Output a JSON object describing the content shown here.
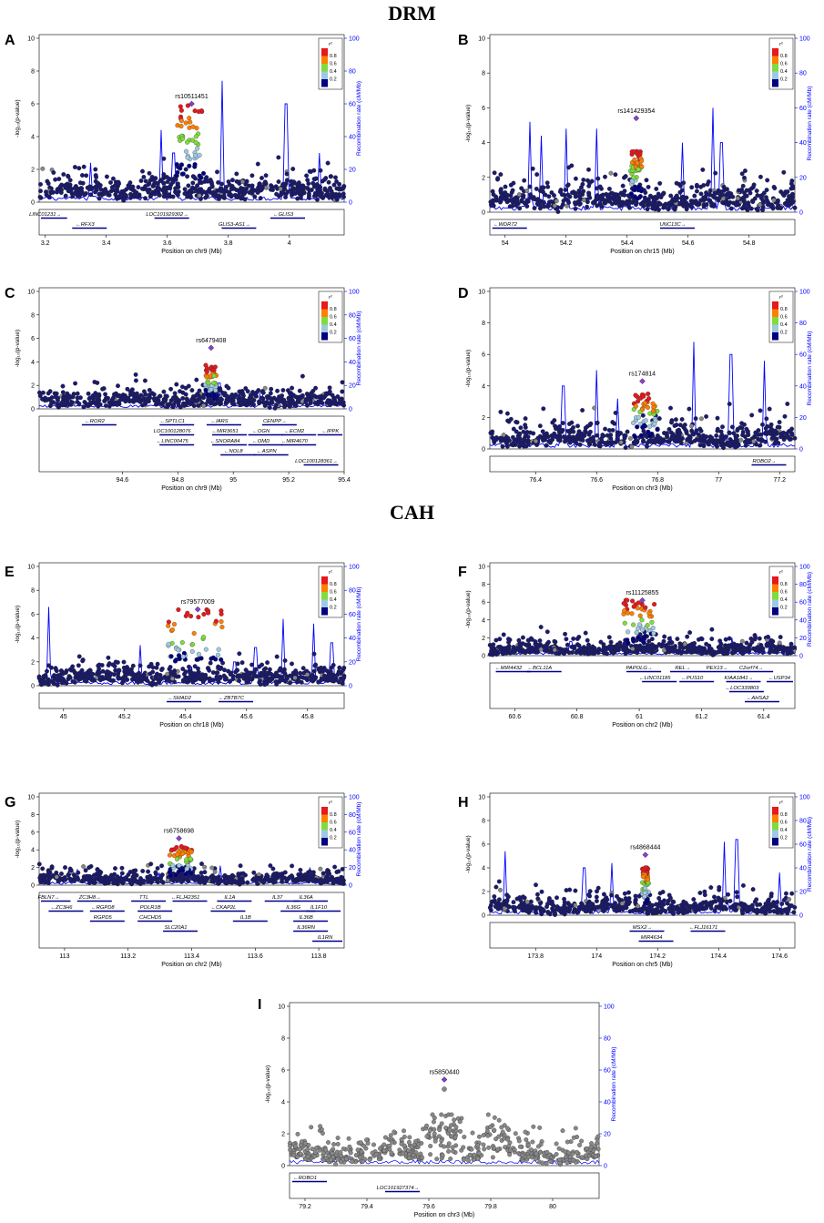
{
  "sections": [
    {
      "title": "DRM",
      "panel_ids": [
        "A",
        "B",
        "C",
        "D"
      ]
    },
    {
      "title": "CAH",
      "panel_ids": [
        "E",
        "F",
        "G",
        "H",
        "I"
      ]
    }
  ],
  "common": {
    "ylabel": "-log₁₀(p-value)",
    "ylabel2": "Recombination rate (cM/Mb)",
    "legend_title": "r²",
    "legend_labels": [
      "0.8",
      "0.6",
      "0.4",
      "0.2"
    ],
    "legend_colors": [
      "#e41a1c",
      "#ff7f00",
      "#7fdc3c",
      "#9ecae1",
      "#000080"
    ],
    "y_ticks": [
      "0",
      "2",
      "4",
      "6",
      "8",
      "10"
    ],
    "y2_ticks": [
      "0",
      "20",
      "40",
      "60",
      "80",
      "100"
    ],
    "point_color": "#1a1a6e",
    "gray_color": "#888888",
    "recomb_color": "#0000ff"
  },
  "chart_data": [
    {
      "id": "A",
      "type": "scatter",
      "title": "",
      "xlabel": "Position on chr9 (Mb)",
      "xlim": [
        3.18,
        4.18
      ],
      "ylim": [
        0,
        10
      ],
      "x_ticks": [
        3.2,
        3.4,
        3.6,
        3.8,
        4.0
      ],
      "x_tick_labels": [
        "3.2",
        "3.4",
        "3.6",
        "3.8",
        "4"
      ],
      "lead_snp": "rs10511451",
      "lead_x": 3.68,
      "lead_y": 6.0,
      "cluster": {
        "x": [
          3.63,
          3.72
        ],
        "max_y": 6.0
      },
      "recomb_peaks": [
        [
          3.35,
          24
        ],
        [
          3.58,
          44
        ],
        [
          3.62,
          30
        ],
        [
          3.78,
          74
        ],
        [
          3.99,
          60
        ],
        [
          4.1,
          30
        ]
      ],
      "genes": [
        {
          "name": "LINC01231",
          "x": 3.2,
          "row": 0,
          "dir": "→"
        },
        {
          "name": "RFX3",
          "x": 3.33,
          "row": 1,
          "dir": "←"
        },
        {
          "name": "LOC101929302",
          "x": 3.6,
          "row": 0,
          "dir": "→"
        },
        {
          "name": "GLIS3",
          "x": 3.98,
          "row": 0,
          "dir": "←"
        },
        {
          "name": "GLIS3-AS1",
          "x": 3.82,
          "row": 1,
          "dir": "→"
        }
      ]
    },
    {
      "id": "B",
      "type": "scatter",
      "title": "",
      "xlabel": "Position on chr15 (Mb)",
      "xlim": [
        53.95,
        54.95
      ],
      "ylim": [
        0,
        10
      ],
      "x_ticks": [
        54.0,
        54.2,
        54.4,
        54.6,
        54.8
      ],
      "x_tick_labels": [
        "54",
        "54.2",
        "54.4",
        "54.6",
        "54.8"
      ],
      "lead_snp": "rs141429354",
      "lead_x": 54.43,
      "lead_y": 5.4,
      "cluster": {
        "x": [
          54.41,
          54.45
        ],
        "max_y": 3.6
      },
      "recomb_peaks": [
        [
          54.08,
          52
        ],
        [
          54.12,
          44
        ],
        [
          54.2,
          48
        ],
        [
          54.3,
          48
        ],
        [
          54.58,
          40
        ],
        [
          54.68,
          60
        ],
        [
          54.71,
          40
        ]
      ],
      "genes": [
        {
          "name": "WDR72",
          "x": 54.0,
          "row": 0,
          "dir": "←"
        },
        {
          "name": "UNC13C",
          "x": 54.55,
          "row": 0,
          "dir": "→"
        }
      ]
    },
    {
      "id": "C",
      "type": "scatter",
      "title": "",
      "xlabel": "Position on chr9 (Mb)",
      "xlim": [
        94.3,
        95.4
      ],
      "ylim": [
        0,
        10
      ],
      "x_ticks": [
        94.6,
        94.8,
        95.0,
        95.2,
        95.4
      ],
      "x_tick_labels": [
        "94.6",
        "94.8",
        "95",
        "95.2",
        "95.4"
      ],
      "lead_snp": "rs6479408",
      "lead_x": 94.92,
      "lead_y": 5.2,
      "cluster": {
        "x": [
          94.9,
          94.94
        ],
        "max_y": 3.8
      },
      "recomb_peaks": [
        [
          94.95,
          22
        ],
        [
          95.1,
          14
        ]
      ],
      "genes": [
        {
          "name": "ROR2",
          "x": 94.5,
          "row": 0,
          "dir": "←"
        },
        {
          "name": "SPTLC1",
          "x": 94.78,
          "row": 0,
          "dir": "←"
        },
        {
          "name": "IARS",
          "x": 94.95,
          "row": 0,
          "dir": "←"
        },
        {
          "name": "CENPP",
          "x": 95.15,
          "row": 0,
          "dir": "→"
        },
        {
          "name": "LOC100128076",
          "x": 94.78,
          "row": 1,
          "dir": ""
        },
        {
          "name": "MIR3651",
          "x": 94.97,
          "row": 1,
          "dir": "←"
        },
        {
          "name": "OGN",
          "x": 95.1,
          "row": 1,
          "dir": "←"
        },
        {
          "name": "ECM2",
          "x": 95.22,
          "row": 1,
          "dir": "←"
        },
        {
          "name": "IPPK",
          "x": 95.35,
          "row": 1,
          "dir": "←"
        },
        {
          "name": "LINC00475",
          "x": 94.78,
          "row": 2,
          "dir": "←"
        },
        {
          "name": "SNORA84",
          "x": 94.97,
          "row": 2,
          "dir": "←"
        },
        {
          "name": "OMD",
          "x": 95.1,
          "row": 2,
          "dir": "←"
        },
        {
          "name": "MIR4670",
          "x": 95.22,
          "row": 2,
          "dir": "←"
        },
        {
          "name": "NOL8",
          "x": 95.0,
          "row": 3,
          "dir": "←"
        },
        {
          "name": "ASPN",
          "x": 95.12,
          "row": 3,
          "dir": "←"
        },
        {
          "name": "LOC100128361",
          "x": 95.3,
          "row": 4,
          "dir": "→"
        }
      ]
    },
    {
      "id": "D",
      "type": "scatter",
      "title": "",
      "xlabel": "Position on chr3 (Mb)",
      "xlim": [
        76.25,
        77.25
      ],
      "ylim": [
        0,
        10
      ],
      "x_ticks": [
        76.4,
        76.6,
        76.8,
        77.0,
        77.2
      ],
      "x_tick_labels": [
        "76.4",
        "76.6",
        "76.8",
        "77",
        "77.2"
      ],
      "lead_snp": "rs174814",
      "lead_x": 76.75,
      "lead_y": 4.3,
      "cluster": {
        "x": [
          76.72,
          76.8
        ],
        "max_y": 3.5
      },
      "recomb_peaks": [
        [
          76.49,
          40
        ],
        [
          76.6,
          50
        ],
        [
          76.67,
          32
        ],
        [
          76.92,
          68
        ],
        [
          77.04,
          60
        ],
        [
          77.15,
          56
        ]
      ],
      "genes": [
        {
          "name": "ROBO2",
          "x": 77.15,
          "row": 0,
          "dir": "→"
        }
      ]
    },
    {
      "id": "E",
      "type": "scatter",
      "title": "",
      "xlabel": "Position on chr18 (Mb)",
      "xlim": [
        44.92,
        45.92
      ],
      "ylim": [
        0,
        10
      ],
      "x_ticks": [
        45.0,
        45.2,
        45.4,
        45.6,
        45.8
      ],
      "x_tick_labels": [
        "45",
        "45.2",
        "45.4",
        "45.6",
        "45.8"
      ],
      "lead_snp": "rs79577009",
      "lead_x": 45.44,
      "lead_y": 6.4,
      "cluster": {
        "x": [
          45.34,
          45.52
        ],
        "max_y": 6.4
      },
      "recomb_peaks": [
        [
          44.95,
          66
        ],
        [
          45.25,
          34
        ],
        [
          45.42,
          16
        ],
        [
          45.56,
          20
        ],
        [
          45.63,
          32
        ],
        [
          45.72,
          56
        ],
        [
          45.82,
          52
        ],
        [
          45.88,
          36
        ]
      ],
      "genes": [
        {
          "name": "SMAD2",
          "x": 45.38,
          "row": 0,
          "dir": "←"
        },
        {
          "name": "ZBTB7C",
          "x": 45.55,
          "row": 0,
          "dir": "←"
        }
      ]
    },
    {
      "id": "F",
      "type": "scatter",
      "title": "",
      "xlabel": "Position on chr2 (Mb)",
      "xlim": [
        60.52,
        61.5
      ],
      "ylim": [
        0,
        10
      ],
      "x_ticks": [
        60.6,
        60.8,
        61.0,
        61.2,
        61.4
      ],
      "x_tick_labels": [
        "60.6",
        "60.8",
        "61",
        "61.2",
        "61.4"
      ],
      "lead_snp": "rs11125855",
      "lead_x": 61.01,
      "lead_y": 6.2,
      "cluster": {
        "x": [
          60.95,
          61.05
        ],
        "max_y": 6.2
      },
      "recomb_peaks": [
        [
          60.78,
          16
        ],
        [
          61.1,
          22
        ],
        [
          61.3,
          20
        ],
        [
          61.42,
          20
        ]
      ],
      "genes": [
        {
          "name": "MIR4432",
          "x": 60.58,
          "row": 0,
          "dir": "←"
        },
        {
          "name": "BCL11A",
          "x": 60.68,
          "row": 0,
          "dir": "←"
        },
        {
          "name": "PAPOLG",
          "x": 61.0,
          "row": 0,
          "dir": "→"
        },
        {
          "name": "REL",
          "x": 61.14,
          "row": 0,
          "dir": "→"
        },
        {
          "name": "PEX13",
          "x": 61.25,
          "row": 0,
          "dir": "→"
        },
        {
          "name": "C2orf74",
          "x": 61.36,
          "row": 0,
          "dir": "→"
        },
        {
          "name": "LINC01185",
          "x": 61.05,
          "row": 1,
          "dir": "←"
        },
        {
          "name": "PUS10",
          "x": 61.17,
          "row": 1,
          "dir": "←"
        },
        {
          "name": "KIAA1841",
          "x": 61.32,
          "row": 1,
          "dir": "→"
        },
        {
          "name": "USP34",
          "x": 61.45,
          "row": 1,
          "dir": "←"
        },
        {
          "name": "LOC339803",
          "x": 61.33,
          "row": 2,
          "dir": "←"
        },
        {
          "name": "AHSA2",
          "x": 61.38,
          "row": 3,
          "dir": "←"
        }
      ]
    },
    {
      "id": "G",
      "type": "scatter",
      "title": "",
      "xlabel": "Position on chr2 (Mb)",
      "xlim": [
        112.92,
        113.88
      ],
      "ylim": [
        0,
        10
      ],
      "x_ticks": [
        113.0,
        113.2,
        113.4,
        113.6,
        113.8
      ],
      "x_tick_labels": [
        "113",
        "113.2",
        "113.4",
        "113.6",
        "113.8"
      ],
      "lead_snp": "rs6758698",
      "lead_x": 113.36,
      "lead_y": 5.3,
      "cluster": {
        "x": [
          113.33,
          113.4
        ],
        "max_y": 4.5
      },
      "recomb_peaks": [
        [
          113.04,
          18
        ],
        [
          113.18,
          12
        ],
        [
          113.3,
          14
        ],
        [
          113.49,
          22
        ],
        [
          113.77,
          20
        ]
      ],
      "genes": [
        {
          "name": "FBLN7",
          "x": 112.95,
          "row": 0,
          "dir": "→"
        },
        {
          "name": "ZC3H8",
          "x": 113.08,
          "row": 0,
          "dir": "→"
        },
        {
          "name": "TTL",
          "x": 113.25,
          "row": 0,
          "dir": ""
        },
        {
          "name": "FLJ42351",
          "x": 113.38,
          "row": 0,
          "dir": "←"
        },
        {
          "name": "IL1A",
          "x": 113.52,
          "row": 0,
          "dir": ""
        },
        {
          "name": "IL37",
          "x": 113.67,
          "row": 0,
          "dir": ""
        },
        {
          "name": "IL36A",
          "x": 113.76,
          "row": 0,
          "dir": ""
        },
        {
          "name": "ZC3H6",
          "x": 112.99,
          "row": 1,
          "dir": "←"
        },
        {
          "name": "RGPD8",
          "x": 113.12,
          "row": 1,
          "dir": "←"
        },
        {
          "name": "POLR1B",
          "x": 113.27,
          "row": 1,
          "dir": ""
        },
        {
          "name": "CKAP2L",
          "x": 113.5,
          "row": 1,
          "dir": "←"
        },
        {
          "name": "IL36G",
          "x": 113.72,
          "row": 1,
          "dir": ""
        },
        {
          "name": "IL1F10",
          "x": 113.8,
          "row": 1,
          "dir": ""
        },
        {
          "name": "RGPD5",
          "x": 113.12,
          "row": 2,
          "dir": ""
        },
        {
          "name": "CHCHD5",
          "x": 113.27,
          "row": 2,
          "dir": ""
        },
        {
          "name": "IL1B",
          "x": 113.57,
          "row": 2,
          "dir": ""
        },
        {
          "name": "IL36B",
          "x": 113.76,
          "row": 2,
          "dir": ""
        },
        {
          "name": "SLC20A1",
          "x": 113.35,
          "row": 3,
          "dir": ""
        },
        {
          "name": "IL36RN",
          "x": 113.76,
          "row": 3,
          "dir": ""
        },
        {
          "name": "IL1RN",
          "x": 113.82,
          "row": 4,
          "dir": ""
        }
      ]
    },
    {
      "id": "H",
      "type": "scatter",
      "title": "",
      "xlabel": "Position on chr5 (Mb)",
      "xlim": [
        173.65,
        174.65
      ],
      "ylim": [
        0,
        10
      ],
      "x_ticks": [
        173.8,
        174.0,
        174.2,
        174.4,
        174.6
      ],
      "x_tick_labels": [
        "173.8",
        "174",
        "174.2",
        "174.4",
        "174.6"
      ],
      "lead_snp": "rs4868444",
      "lead_x": 174.16,
      "lead_y": 5.1,
      "cluster": {
        "x": [
          174.15,
          174.17
        ],
        "max_y": 4.0
      },
      "recomb_peaks": [
        [
          173.7,
          54
        ],
        [
          173.96,
          40
        ],
        [
          174.05,
          44
        ],
        [
          174.42,
          62
        ],
        [
          174.46,
          64
        ],
        [
          174.6,
          36
        ]
      ],
      "genes": [
        {
          "name": "MSX2",
          "x": 174.15,
          "row": 0,
          "dir": "→"
        },
        {
          "name": "FLJ16171",
          "x": 174.35,
          "row": 0,
          "dir": "←"
        },
        {
          "name": "MIR4634",
          "x": 174.18,
          "row": 1,
          "dir": ""
        }
      ]
    },
    {
      "id": "I",
      "type": "scatter",
      "title": "",
      "xlabel": "Position on chr3 (Mb)",
      "xlim": [
        79.15,
        80.15
      ],
      "ylim": [
        0,
        10
      ],
      "x_ticks": [
        79.2,
        79.4,
        79.6,
        79.8,
        80.0
      ],
      "x_tick_labels": [
        "79.2",
        "79.4",
        "79.6",
        "79.8",
        "80"
      ],
      "lead_snp": "rs5850440",
      "lead_x": 79.65,
      "lead_y": 5.4,
      "cluster": {
        "x": [
          79.65,
          79.65
        ],
        "max_y": 4.8
      },
      "all_gray": true,
      "recomb_peaks": [],
      "genes": [
        {
          "name": "ROBO1",
          "x": 79.2,
          "row": 0,
          "dir": "←"
        },
        {
          "name": "LOC101927374",
          "x": 79.5,
          "row": 1,
          "dir": "→"
        }
      ]
    }
  ]
}
